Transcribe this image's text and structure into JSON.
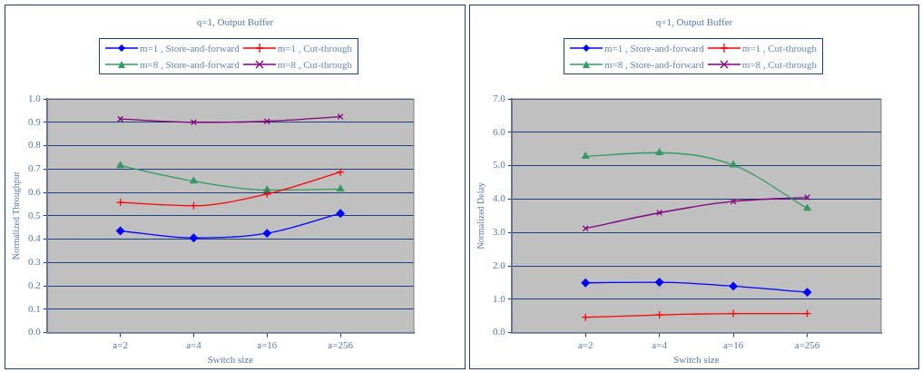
{
  "chart_data": [
    {
      "type": "line",
      "title": "q=1, Output Buffer",
      "xlabel": "Switch size",
      "ylabel": "Normalized Throughput",
      "categories": [
        "a=2",
        "a=4",
        "a=16",
        "a=256"
      ],
      "series": [
        {
          "name": "m=1 , Store-and-forward",
          "color": "#0000ff",
          "marker": "diamond",
          "values": [
            0.435,
            0.405,
            0.425,
            0.51
          ]
        },
        {
          "name": "m=1 , Cut-through",
          "color": "#ff0000",
          "marker": "cross",
          "values": [
            0.557,
            0.543,
            0.593,
            0.687
          ]
        },
        {
          "name": "m=8 , Store-and-forward",
          "color": "#339966",
          "marker": "triangle",
          "values": [
            0.714,
            0.648,
            0.61,
            0.614
          ]
        },
        {
          "name": "m=8 , Cut-through",
          "color": "#800080",
          "marker": "x",
          "values": [
            0.914,
            0.9,
            0.904,
            0.924
          ]
        }
      ],
      "ylim": [
        0,
        1
      ],
      "yticks": [
        {
          "value": 0,
          "label": "0.0"
        },
        0.1,
        0.2,
        0.3,
        0.4,
        0.5,
        0.6,
        0.7,
        0.8,
        0.9,
        {
          "value": 1,
          "label": "1.0"
        }
      ],
      "grid": "y",
      "legend": "top",
      "line_style": "solid"
    },
    {
      "type": "line",
      "title": "q=1, Output Buffer",
      "xlabel": "Switch size",
      "ylabel": "Normalized Delay",
      "categories": [
        "a=2",
        "a=4",
        "a=16",
        "a=256"
      ],
      "series": [
        {
          "name": "m=1 , Store-and-forward",
          "color": "#0000ff",
          "marker": "diamond",
          "values": [
            1.49,
            1.51,
            1.39,
            1.21
          ]
        },
        {
          "name": "m=1 , Cut-through",
          "color": "#ff0000",
          "marker": "cross",
          "values": [
            0.46,
            0.53,
            0.57,
            0.57
          ]
        },
        {
          "name": "m=8 , Store-and-forward",
          "color": "#339966",
          "marker": "triangle",
          "values": [
            5.28,
            5.39,
            5.02,
            3.72
          ]
        },
        {
          "name": "m=8 , Cut-through",
          "color": "#800080",
          "marker": "x",
          "values": [
            3.12,
            3.59,
            3.93,
            4.05
          ]
        }
      ],
      "ylim": [
        0,
        7
      ],
      "yticks": [
        {
          "value": 0,
          "label": "0.0"
        },
        {
          "value": 1,
          "label": "1.0"
        },
        {
          "value": 2,
          "label": "2.0"
        },
        {
          "value": 3,
          "label": "3.0"
        },
        {
          "value": 4,
          "label": "4.0"
        },
        {
          "value": 5,
          "label": "5.0"
        },
        {
          "value": 6,
          "label": "6.0"
        },
        {
          "value": 7,
          "label": "7.0"
        }
      ],
      "grid": "y",
      "legend": "top",
      "line_style": "solid"
    }
  ]
}
